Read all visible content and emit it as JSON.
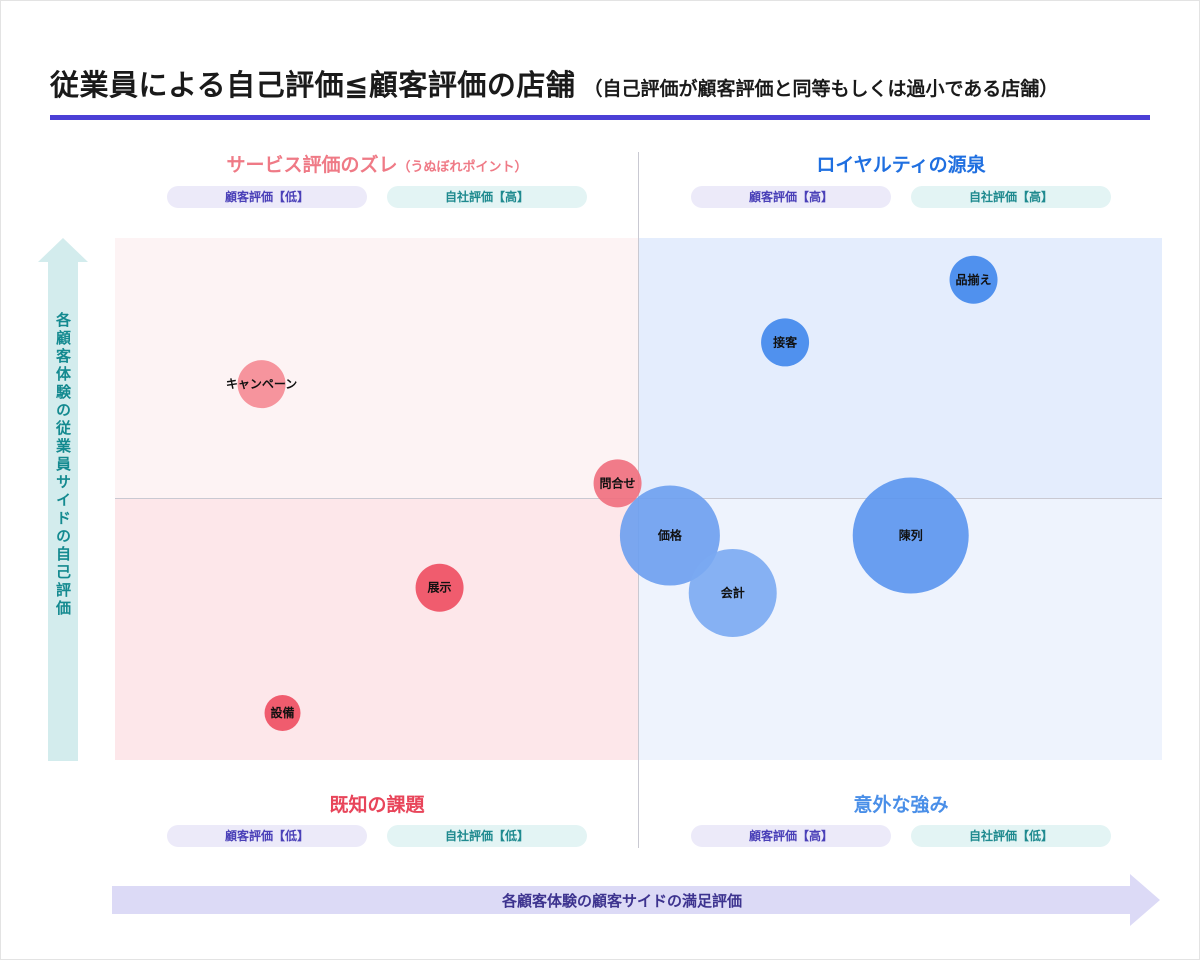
{
  "title": {
    "main": "従業員による自己評価≦顧客評価の店舗",
    "sub": "（自己評価が顧客評価と同等もしくは過小である店舗）"
  },
  "quadrants": {
    "top_left": {
      "label": "サービス評価のズレ",
      "label_note": "（うぬぼれポイント）",
      "customer_pill": "顧客評価【低】",
      "self_pill": "自社評価【高】",
      "color": "#ef7a86"
    },
    "top_right": {
      "label": "ロイヤルティの源泉",
      "customer_pill": "顧客評価【高】",
      "self_pill": "自社評価【高】",
      "color": "#1f6fe0"
    },
    "bottom_left": {
      "label": "既知の課題",
      "customer_pill": "顧客評価【低】",
      "self_pill": "自社評価【低】",
      "color": "#e8455a"
    },
    "bottom_right": {
      "label": "意外な強み",
      "customer_pill": "顧客評価【高】",
      "self_pill": "自社評価【低】",
      "color": "#4a8fe8"
    }
  },
  "axes": {
    "y_label": "各顧客体験の従業員サイドの自己評価",
    "x_label": "各顧客体験の顧客サイドの満足評価"
  },
  "chart_data": {
    "type": "scatter",
    "bubble": true,
    "xlim": [
      0,
      100
    ],
    "ylim": [
      0,
      100
    ],
    "x_split": 50,
    "y_split": 50,
    "grid": false,
    "points": [
      {
        "label": "品揃え",
        "x": 82,
        "y": 92,
        "size": 12,
        "color": "#3f86ec"
      },
      {
        "label": "接客",
        "x": 64,
        "y": 80,
        "size": 12,
        "color": "#3f86ec"
      },
      {
        "label": "キャンペーン",
        "x": 14,
        "y": 72,
        "size": 12,
        "color": "#f58a94"
      },
      {
        "label": "問合せ",
        "x": 48,
        "y": 53,
        "size": 12,
        "color": "#f06e7d"
      },
      {
        "label": "価格",
        "x": 53,
        "y": 43,
        "size": 25,
        "color": "#6b9ff0"
      },
      {
        "label": "会計",
        "x": 59,
        "y": 32,
        "size": 22,
        "color": "#7aaaf2"
      },
      {
        "label": "陳列",
        "x": 76,
        "y": 43,
        "size": 29,
        "color": "#5a95ee"
      },
      {
        "label": "展示",
        "x": 31,
        "y": 33,
        "size": 12,
        "color": "#ee4d61"
      },
      {
        "label": "設備",
        "x": 16,
        "y": 9,
        "size": 9,
        "color": "#ee4d61"
      }
    ]
  }
}
